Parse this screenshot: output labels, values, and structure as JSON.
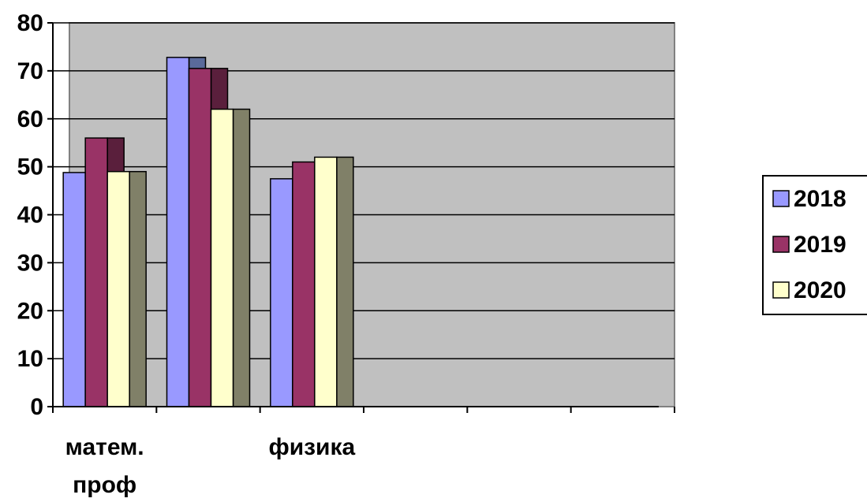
{
  "chart_data": {
    "type": "bar",
    "title": "",
    "xlabel": "",
    "ylabel": "",
    "ylim": [
      0,
      80
    ],
    "ytick_step": 10,
    "grid": true,
    "legend_position": "right",
    "categories": [
      "матем. проф",
      "",
      "физика",
      "",
      "",
      ""
    ],
    "category_label_lines": [
      [
        "матем.",
        "проф"
      ],
      [],
      [
        "физика"
      ],
      [],
      [],
      []
    ],
    "series": [
      {
        "name": "2018",
        "color": "#9999ff",
        "values": [
          48.8,
          72.8,
          47.5,
          null,
          null,
          null
        ]
      },
      {
        "name": "2019",
        "color": "#993366",
        "values": [
          56.0,
          70.5,
          51.0,
          null,
          null,
          null
        ]
      },
      {
        "name": "2020",
        "color": "#ffffcc",
        "values": [
          49.0,
          62.0,
          52.0,
          null,
          null,
          null
        ]
      }
    ],
    "shadow_colors": [
      "#5a6a9a",
      "#5a1f3c",
      "#808068"
    ],
    "plot_background": "#c0c0c0"
  }
}
